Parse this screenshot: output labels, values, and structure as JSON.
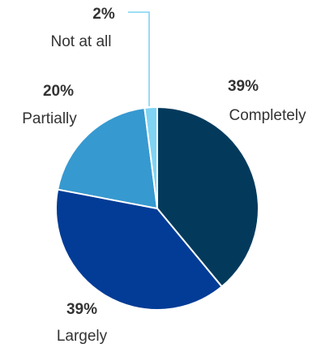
{
  "chart_data": {
    "type": "pie",
    "title": "",
    "slices": [
      {
        "label": "Completely",
        "value_label": "39%",
        "value": 39,
        "color": "#033a5c"
      },
      {
        "label": "Largely",
        "value_label": "39%",
        "value": 39,
        "color": "#023c96"
      },
      {
        "label": "Partially",
        "value_label": "20%",
        "value": 20,
        "color": "#3699d0"
      },
      {
        "label": "Not at all",
        "value_label": "2%",
        "value": 2,
        "color": "#7fd3f3"
      }
    ],
    "leader_line_color": "#7fd3f3",
    "text_color": "#333333"
  }
}
